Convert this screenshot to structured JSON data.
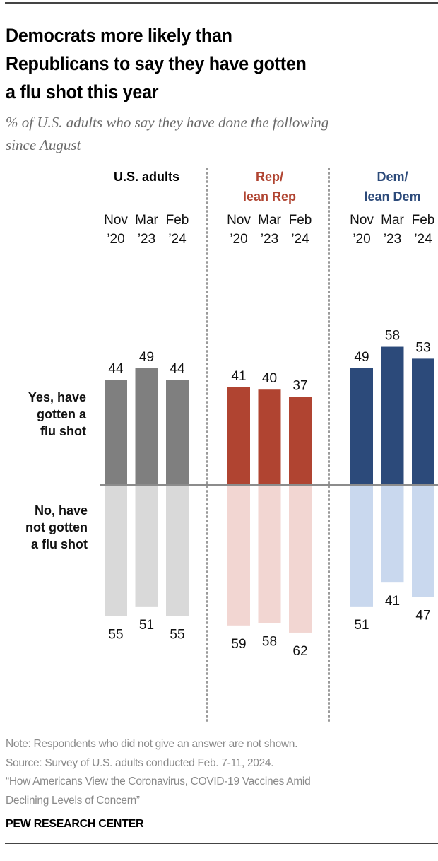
{
  "header": {
    "title_lines": [
      "Democrats more likely than",
      "Republicans to say they have gotten",
      "a flu shot this year"
    ],
    "subtitle_lines": [
      "% of U.S. adults who say they have done the following",
      "since August"
    ]
  },
  "footer": {
    "note": "Note: Respondents who did not give an answer are not shown.",
    "source": "Source: Survey of U.S. adults conducted Feb. 7-11, 2024.",
    "report_lines": [
      "“How Americans View the Coronavirus, COVID-19 Vaccines Amid",
      "Declining Levels of Concern”"
    ],
    "brand": "PEW RESEARCH CENTER"
  },
  "chart_data": {
    "type": "bar",
    "title": "Democrats more likely than Republicans to say they have gotten a flu shot this year",
    "subtitle": "% of U.S. adults who say they have done the following since August",
    "xlabel": "",
    "ylabel": "",
    "layout": "diverging",
    "grid": false,
    "legend": "none",
    "ylim": [
      -62,
      58
    ],
    "periods": [
      {
        "line1": "Nov",
        "line2": "’20"
      },
      {
        "line1": "Mar",
        "line2": "’23"
      },
      {
        "line1": "Feb",
        "line2": "’24"
      }
    ],
    "row_labels": {
      "yes": [
        "Yes, have",
        "gotten a",
        "flu shot"
      ],
      "no": [
        "No, have",
        "not gotten",
        "a flu shot"
      ]
    },
    "groups": [
      {
        "name": "U.S. adults",
        "label_lines": [
          "U.S. adults"
        ],
        "label_color": "#000000",
        "yes_color": "#7f7f7f",
        "no_color": "#d9d9d9",
        "yes": [
          44,
          49,
          44
        ],
        "no": [
          55,
          51,
          55
        ]
      },
      {
        "name": "Rep/lean Rep",
        "label_lines": [
          "Rep/",
          "lean Rep"
        ],
        "label_color": "#b04431",
        "yes_color": "#b04431",
        "no_color": "#f2d6d2",
        "yes": [
          41,
          40,
          37
        ],
        "no": [
          59,
          58,
          62
        ]
      },
      {
        "name": "Dem/lean Dem",
        "label_lines": [
          "Dem/",
          "lean Dem"
        ],
        "label_color": "#2c4a7a",
        "yes_color": "#2c4a7a",
        "no_color": "#c9d8ee",
        "yes": [
          49,
          58,
          53
        ],
        "no": [
          51,
          41,
          47
        ]
      }
    ],
    "baseline_color": "#8c8c8c",
    "divider_color": "#9a9a9a"
  }
}
